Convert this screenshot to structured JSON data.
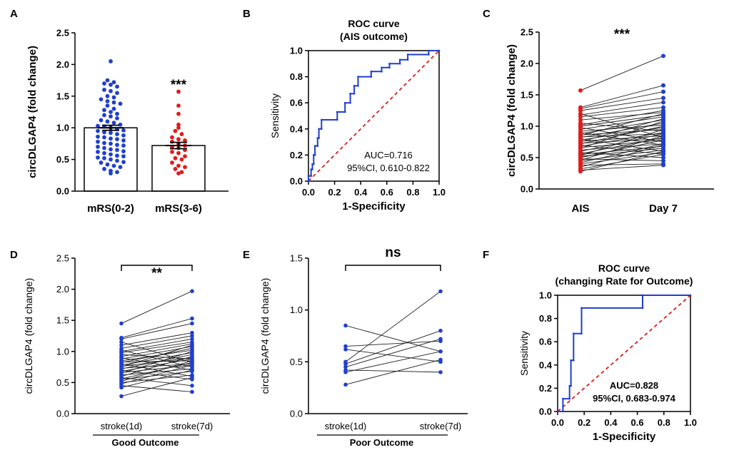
{
  "panels": {
    "A": {
      "label": "A"
    },
    "B": {
      "label": "B"
    },
    "C": {
      "label": "C"
    },
    "D": {
      "label": "D"
    },
    "E": {
      "label": "E"
    },
    "F": {
      "label": "F"
    }
  },
  "chart_data": [
    {
      "panel": "A",
      "type": "bar",
      "categories": [
        "mRS(0-2)",
        "mRS(3-6)"
      ],
      "values": [
        1.0,
        0.72
      ],
      "sem": [
        0.04,
        0.05
      ],
      "ylabel": "circDLGAP4 (fold change)",
      "ylim": [
        0,
        2.5
      ],
      "yticks": [
        "0.0",
        "0.5",
        "1.0",
        "1.5",
        "2.0",
        "2.5"
      ],
      "colors": [
        "#1f3fd0",
        "#e01c1c"
      ],
      "significance": "***",
      "points": [
        [
          2.05,
          1.75,
          1.72,
          1.7,
          1.68,
          1.65,
          1.6,
          1.58,
          1.55,
          1.5,
          1.48,
          1.45,
          1.42,
          1.4,
          1.38,
          1.35,
          1.3,
          1.28,
          1.25,
          1.22,
          1.2,
          1.18,
          1.15,
          1.12,
          1.1,
          1.08,
          1.05,
          1.03,
          1.02,
          1.0,
          0.98,
          0.96,
          0.95,
          0.93,
          0.92,
          0.9,
          0.88,
          0.86,
          0.85,
          0.83,
          0.82,
          0.8,
          0.78,
          0.76,
          0.75,
          0.73,
          0.72,
          0.7,
          0.68,
          0.66,
          0.65,
          0.63,
          0.62,
          0.6,
          0.58,
          0.56,
          0.55,
          0.53,
          0.52,
          0.5,
          0.48,
          0.46,
          0.45,
          0.42,
          0.4,
          0.38,
          0.35,
          0.32,
          0.3,
          0.28
        ],
        [
          1.57,
          1.35,
          1.22,
          1.05,
          1.0,
          0.95,
          0.9,
          0.85,
          0.82,
          0.8,
          0.78,
          0.75,
          0.72,
          0.7,
          0.68,
          0.65,
          0.62,
          0.6,
          0.55,
          0.52,
          0.5,
          0.45,
          0.4,
          0.38,
          0.35,
          0.3,
          0.28
        ]
      ]
    },
    {
      "panel": "B",
      "type": "line",
      "title": "ROC curve",
      "subtitle": "(AIS outcome)",
      "xlabel": "1-Specificity",
      "ylabel": "Sensitivity",
      "xlim": [
        0,
        1
      ],
      "ylim": [
        0,
        1
      ],
      "xticks": [
        "0.0",
        "0.2",
        "0.4",
        "0.6",
        "0.8",
        "1.0"
      ],
      "yticks": [
        "0.0",
        "0.2",
        "0.4",
        "0.6",
        "0.8",
        "1.0"
      ],
      "roc": [
        [
          0,
          0
        ],
        [
          0,
          0.04
        ],
        [
          0.02,
          0.04
        ],
        [
          0.02,
          0.09
        ],
        [
          0.03,
          0.09
        ],
        [
          0.03,
          0.13
        ],
        [
          0.04,
          0.13
        ],
        [
          0.04,
          0.2
        ],
        [
          0.05,
          0.2
        ],
        [
          0.05,
          0.27
        ],
        [
          0.07,
          0.27
        ],
        [
          0.07,
          0.33
        ],
        [
          0.08,
          0.33
        ],
        [
          0.08,
          0.4
        ],
        [
          0.1,
          0.4
        ],
        [
          0.1,
          0.47
        ],
        [
          0.22,
          0.47
        ],
        [
          0.22,
          0.53
        ],
        [
          0.28,
          0.53
        ],
        [
          0.28,
          0.6
        ],
        [
          0.32,
          0.6
        ],
        [
          0.32,
          0.67
        ],
        [
          0.35,
          0.67
        ],
        [
          0.35,
          0.73
        ],
        [
          0.38,
          0.73
        ],
        [
          0.38,
          0.8
        ],
        [
          0.48,
          0.8
        ],
        [
          0.48,
          0.84
        ],
        [
          0.56,
          0.84
        ],
        [
          0.56,
          0.87
        ],
        [
          0.62,
          0.87
        ],
        [
          0.62,
          0.9
        ],
        [
          0.7,
          0.9
        ],
        [
          0.7,
          0.93
        ],
        [
          0.76,
          0.93
        ],
        [
          0.76,
          0.97
        ],
        [
          0.92,
          0.97
        ],
        [
          0.92,
          1.0
        ],
        [
          1.0,
          1.0
        ]
      ],
      "auc": "AUC=0.716",
      "ci": "95%CI, 0.610-0.822"
    },
    {
      "panel": "C",
      "type": "line",
      "categories": [
        "AIS",
        "Day 7"
      ],
      "ylabel": "circDLGAP4 (fold change)",
      "ylim": [
        0,
        2.5
      ],
      "yticks": [
        "0.0",
        "0.5",
        "1.0",
        "1.5",
        "2.0",
        "2.5"
      ],
      "significance": "***",
      "pairs": [
        [
          1.57,
          2.12
        ],
        [
          1.3,
          1.65
        ],
        [
          1.28,
          1.55
        ],
        [
          1.25,
          1.45
        ],
        [
          1.2,
          0.82
        ],
        [
          1.18,
          1.38
        ],
        [
          1.15,
          1.3
        ],
        [
          1.1,
          1.22
        ],
        [
          1.05,
          0.92
        ],
        [
          1.02,
          1.25
        ],
        [
          1.0,
          1.18
        ],
        [
          0.98,
          0.75
        ],
        [
          0.95,
          1.15
        ],
        [
          0.92,
          1.02
        ],
        [
          0.9,
          0.7
        ],
        [
          0.88,
          1.1
        ],
        [
          0.86,
          0.95
        ],
        [
          0.85,
          1.2
        ],
        [
          0.83,
          0.88
        ],
        [
          0.82,
          1.05
        ],
        [
          0.8,
          0.6
        ],
        [
          0.78,
          0.98
        ],
        [
          0.76,
          0.85
        ],
        [
          0.75,
          1.12
        ],
        [
          0.73,
          0.8
        ],
        [
          0.72,
          1.0
        ],
        [
          0.7,
          0.55
        ],
        [
          0.68,
          0.9
        ],
        [
          0.66,
          0.78
        ],
        [
          0.65,
          1.08
        ],
        [
          0.62,
          0.72
        ],
        [
          0.6,
          0.88
        ],
        [
          0.58,
          0.5
        ],
        [
          0.56,
          0.82
        ],
        [
          0.55,
          0.68
        ],
        [
          0.53,
          0.95
        ],
        [
          0.52,
          0.65
        ],
        [
          0.5,
          0.78
        ],
        [
          0.48,
          0.45
        ],
        [
          0.46,
          0.85
        ],
        [
          0.45,
          0.62
        ],
        [
          0.42,
          0.72
        ],
        [
          0.4,
          0.58
        ],
        [
          0.38,
          0.4
        ],
        [
          0.35,
          0.7
        ],
        [
          0.32,
          0.55
        ],
        [
          0.3,
          0.38
        ],
        [
          0.28,
          0.6
        ]
      ]
    },
    {
      "panel": "D",
      "type": "line",
      "categories": [
        "stroke(1d)",
        "stroke(7d)"
      ],
      "group_label": "Good Outcome",
      "ylabel": "circDLGAP4 (fold change)",
      "ylim": [
        0,
        2.5
      ],
      "yticks": [
        "0.0",
        "0.5",
        "1.0",
        "1.5",
        "2.0",
        "2.5"
      ],
      "significance": "**",
      "pairs": [
        [
          1.45,
          1.97
        ],
        [
          1.22,
          1.53
        ],
        [
          1.2,
          1.45
        ],
        [
          1.15,
          0.82
        ],
        [
          1.1,
          1.3
        ],
        [
          1.05,
          1.25
        ],
        [
          1.02,
          0.75
        ],
        [
          1.0,
          1.2
        ],
        [
          0.98,
          1.15
        ],
        [
          0.95,
          0.88
        ],
        [
          0.92,
          1.12
        ],
        [
          0.9,
          0.7
        ],
        [
          0.88,
          1.08
        ],
        [
          0.85,
          1.02
        ],
        [
          0.83,
          0.85
        ],
        [
          0.82,
          1.05
        ],
        [
          0.8,
          0.6
        ],
        [
          0.78,
          0.98
        ],
        [
          0.76,
          0.9
        ],
        [
          0.75,
          1.1
        ],
        [
          0.73,
          0.8
        ],
        [
          0.72,
          0.95
        ],
        [
          0.7,
          0.55
        ],
        [
          0.68,
          0.88
        ],
        [
          0.66,
          0.78
        ],
        [
          0.65,
          1.0
        ],
        [
          0.62,
          0.72
        ],
        [
          0.6,
          0.92
        ],
        [
          0.58,
          0.45
        ],
        [
          0.56,
          0.82
        ],
        [
          0.55,
          0.68
        ],
        [
          0.52,
          0.85
        ],
        [
          0.5,
          0.62
        ],
        [
          0.48,
          0.78
        ],
        [
          0.45,
          0.35
        ],
        [
          0.42,
          0.7
        ],
        [
          0.28,
          0.58
        ]
      ]
    },
    {
      "panel": "E",
      "type": "line",
      "categories": [
        "stroke(1d)",
        "stroke(7d)"
      ],
      "group_label": "Poor Outcome",
      "ylabel": "circDLGAP4 (fold change)",
      "ylim": [
        0,
        1.5
      ],
      "yticks": [
        "0.0",
        "0.5",
        "1.0",
        "1.5"
      ],
      "significance": "ns",
      "pairs": [
        [
          0.85,
          0.6
        ],
        [
          0.65,
          0.7
        ],
        [
          0.62,
          0.5
        ],
        [
          0.5,
          1.18
        ],
        [
          0.48,
          0.8
        ],
        [
          0.45,
          0.72
        ],
        [
          0.42,
          0.4
        ],
        [
          0.4,
          0.6
        ],
        [
          0.28,
          0.52
        ]
      ]
    },
    {
      "panel": "F",
      "type": "line",
      "title": "ROC curve",
      "subtitle": "(changing Rate for Outcome)",
      "xlabel": "1-Specificity",
      "ylabel": "Sensitivity",
      "xlim": [
        0,
        1
      ],
      "ylim": [
        0,
        1
      ],
      "xticks": [
        "0.0",
        "0.2",
        "0.4",
        "0.6",
        "0.8",
        "1.0"
      ],
      "yticks": [
        "0.0",
        "0.2",
        "0.4",
        "0.6",
        "0.8",
        "1.0"
      ],
      "roc": [
        [
          0,
          0
        ],
        [
          0.04,
          0
        ],
        [
          0.04,
          0.11
        ],
        [
          0.09,
          0.11
        ],
        [
          0.09,
          0.22
        ],
        [
          0.1,
          0.22
        ],
        [
          0.1,
          0.44
        ],
        [
          0.12,
          0.44
        ],
        [
          0.12,
          0.67
        ],
        [
          0.18,
          0.67
        ],
        [
          0.18,
          0.89
        ],
        [
          0.64,
          0.89
        ],
        [
          0.64,
          1.0
        ],
        [
          1.0,
          1.0
        ]
      ],
      "auc": "AUC=0.828",
      "ci": "95%CI, 0.683-0.974"
    }
  ]
}
